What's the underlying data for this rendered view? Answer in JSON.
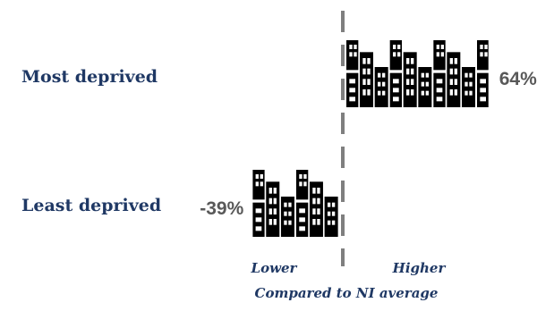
{
  "chart_data": {
    "type": "bar",
    "orientation": "horizontal",
    "style": "pictogram",
    "icon": "city-buildings-icon",
    "categories": [
      "Most deprived",
      "Least deprived"
    ],
    "values": [
      64,
      -39
    ],
    "value_labels": [
      "64%",
      "-39%"
    ],
    "xlim": [
      -60,
      80
    ],
    "baseline": 0,
    "lower_label": "Lower",
    "higher_label": "Higher",
    "xlabel": "Compared to NI average",
    "grid": false,
    "legend": "none"
  },
  "colors": {
    "category_text": "#1f3864",
    "value_text": "#595959",
    "icon": "#000000",
    "baseline": "#7f7f7f"
  }
}
